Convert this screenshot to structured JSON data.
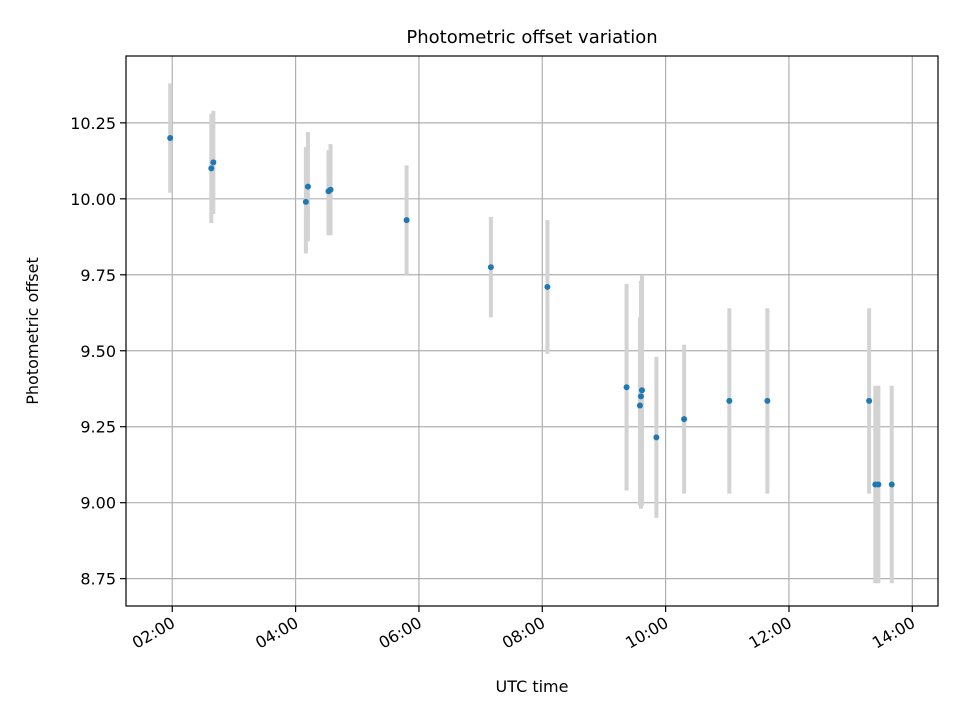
{
  "chart_data": {
    "type": "scatter",
    "title": "Photometric offset variation",
    "xlabel": "UTC time",
    "ylabel": "Photometric offset",
    "x_is_time": true,
    "xlim": [
      "01:15",
      "14:25"
    ],
    "ylim": [
      8.66,
      10.47
    ],
    "xticks": [
      "02:00",
      "04:00",
      "06:00",
      "08:00",
      "10:00",
      "12:00",
      "14:00"
    ],
    "yticks": [
      "8.75",
      "9.00",
      "9.25",
      "9.50",
      "9.75",
      "10.00",
      "10.25"
    ],
    "grid": true,
    "legend": "none",
    "point_color": "#1f77b4",
    "errorbar_color": "#d3d3d3",
    "points": [
      {
        "x": "01:58",
        "y": 10.2,
        "ylow": 10.02,
        "yhigh": 10.38
      },
      {
        "x": "02:38",
        "y": 10.1,
        "ylow": 9.92,
        "yhigh": 10.28
      },
      {
        "x": "02:40",
        "y": 10.12,
        "ylow": 9.95,
        "yhigh": 10.29
      },
      {
        "x": "04:10",
        "y": 9.99,
        "ylow": 9.82,
        "yhigh": 10.17
      },
      {
        "x": "04:12",
        "y": 10.04,
        "ylow": 9.86,
        "yhigh": 10.22
      },
      {
        "x": "04:32",
        "y": 10.025,
        "ylow": 9.88,
        "yhigh": 10.16
      },
      {
        "x": "04:34",
        "y": 10.03,
        "ylow": 9.88,
        "yhigh": 10.18
      },
      {
        "x": "05:48",
        "y": 9.93,
        "ylow": 9.75,
        "yhigh": 10.11
      },
      {
        "x": "07:10",
        "y": 9.775,
        "ylow": 9.61,
        "yhigh": 9.94
      },
      {
        "x": "08:05",
        "y": 9.71,
        "ylow": 9.49,
        "yhigh": 9.93
      },
      {
        "x": "09:22",
        "y": 9.38,
        "ylow": 9.04,
        "yhigh": 9.72
      },
      {
        "x": "09:35",
        "y": 9.32,
        "ylow": 8.99,
        "yhigh": 9.61
      },
      {
        "x": "09:36",
        "y": 9.35,
        "ylow": 8.98,
        "yhigh": 9.73
      },
      {
        "x": "09:37",
        "y": 9.37,
        "ylow": 8.99,
        "yhigh": 9.75
      },
      {
        "x": "09:51",
        "y": 9.215,
        "ylow": 8.95,
        "yhigh": 9.48
      },
      {
        "x": "10:18",
        "y": 9.275,
        "ylow": 9.03,
        "yhigh": 9.52
      },
      {
        "x": "11:02",
        "y": 9.335,
        "ylow": 9.03,
        "yhigh": 9.64
      },
      {
        "x": "11:39",
        "y": 9.335,
        "ylow": 9.03,
        "yhigh": 9.64
      },
      {
        "x": "13:18",
        "y": 9.335,
        "ylow": 9.03,
        "yhigh": 9.64
      },
      {
        "x": "13:24",
        "y": 9.06,
        "ylow": 8.735,
        "yhigh": 9.385
      },
      {
        "x": "13:27",
        "y": 9.06,
        "ylow": 8.735,
        "yhigh": 9.385
      },
      {
        "x": "13:40",
        "y": 9.06,
        "ylow": 8.735,
        "yhigh": 9.385
      }
    ]
  }
}
